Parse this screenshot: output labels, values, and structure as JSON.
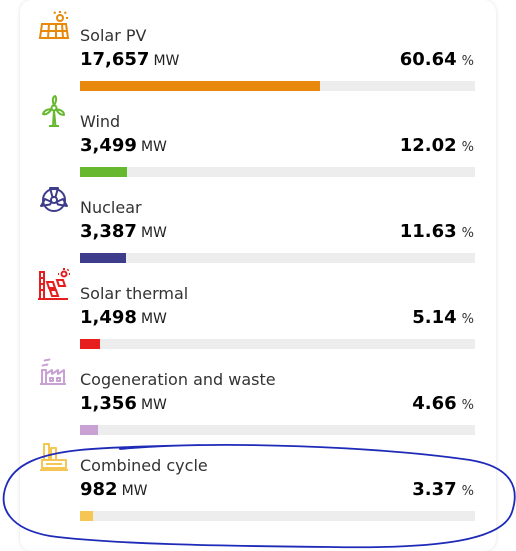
{
  "sources": [
    {
      "name": "Solar PV",
      "value": "17,657",
      "unit": "MW",
      "percent": "60.64",
      "percent_unit": "%",
      "fill_fraction": 0.6064,
      "color": "#e8890c",
      "icon": "solar-panel-icon"
    },
    {
      "name": "Wind",
      "value": "3,499",
      "unit": "MW",
      "percent": "12.02",
      "percent_unit": "%",
      "fill_fraction": 0.1202,
      "color": "#66b82e",
      "icon": "wind-turbine-icon"
    },
    {
      "name": "Nuclear",
      "value": "3,387",
      "unit": "MW",
      "percent": "11.63",
      "percent_unit": "%",
      "fill_fraction": 0.1163,
      "color": "#3d3d8c",
      "icon": "nuclear-icon"
    },
    {
      "name": "Solar thermal",
      "value": "1,498",
      "unit": "MW",
      "percent": "5.14",
      "percent_unit": "%",
      "fill_fraction": 0.0514,
      "color": "#e61e1e",
      "icon": "solar-thermal-icon"
    },
    {
      "name": "Cogeneration and waste",
      "value": "1,356",
      "unit": "MW",
      "percent": "4.66",
      "percent_unit": "%",
      "fill_fraction": 0.0466,
      "color": "#c9a2d3",
      "icon": "cogeneration-factory-icon"
    },
    {
      "name": "Combined cycle",
      "value": "982",
      "unit": "MW",
      "percent": "3.37",
      "percent_unit": "%",
      "fill_fraction": 0.0337,
      "color": "#f5c653",
      "icon": "combined-cycle-plant-icon"
    }
  ],
  "annotation": {
    "color": "#1e2ab8",
    "highlighted_item": "Combined cycle"
  }
}
